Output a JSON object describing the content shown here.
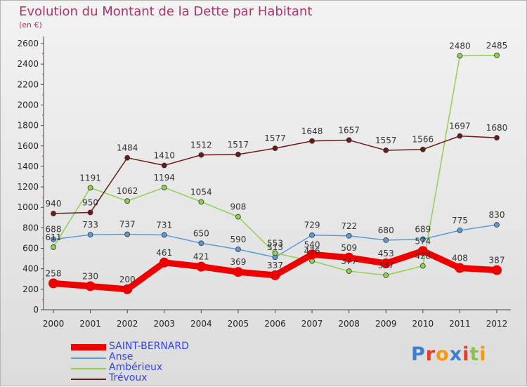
{
  "title": "Evolution du Montant de la Dette par Habitant",
  "unit": "(en €)",
  "logo": {
    "text": "Proxiti",
    "letter_colors": [
      "#3a7fd0",
      "#e0402a",
      "#f29a12",
      "#3a7fd0",
      "#e0402a",
      "#8bc34a",
      "#f29a12"
    ]
  },
  "chart_data": {
    "type": "line",
    "title": "Evolution du Montant de la Dette par Habitant",
    "subtitle": "(en €)",
    "xlabel": "",
    "ylabel": "",
    "x": [
      "2000",
      "2001",
      "2002",
      "2003",
      "2004",
      "2005",
      "2006",
      "2007",
      "2008",
      "2009",
      "2010",
      "2011",
      "2012"
    ],
    "yticks": [
      0,
      200,
      400,
      600,
      800,
      1000,
      1200,
      1400,
      1600,
      1800,
      2000,
      2200,
      2400,
      2600
    ],
    "ylim": [
      0,
      2600
    ],
    "grid": false,
    "legend_position": "bottom-left",
    "series": [
      {
        "name": "SAINT-BERNARD",
        "color": "#ee0000",
        "style": "thick",
        "values": [
          258,
          230,
          200,
          461,
          421,
          369,
          337,
          540,
          509,
          453,
          574,
          408,
          387
        ],
        "labels": [
          "258",
          "230",
          "200",
          "461",
          "421",
          "369",
          "337",
          "540",
          "509",
          "453",
          "574",
          "408",
          "387"
        ]
      },
      {
        "name": "Anse",
        "color": "#5b9bd5",
        "style": "thin",
        "values": [
          688,
          733,
          737,
          731,
          650,
          590,
          513,
          729,
          722,
          680,
          689,
          775,
          830
        ],
        "labels": [
          "688",
          "733",
          "737",
          "731",
          "650",
          "590",
          "513",
          "729",
          "722",
          "680",
          "689",
          "775",
          "830"
        ]
      },
      {
        "name": "Ambérieux",
        "color": "#8fd14f",
        "style": "thin",
        "values": [
          611,
          1191,
          1062,
          1194,
          1054,
          908,
          553,
          476,
          377,
          337,
          428,
          2480,
          2485
        ],
        "labels": [
          "611",
          "1191",
          "1062",
          "1194",
          "1054",
          "908",
          "553",
          "476",
          "377",
          "337",
          "428",
          "2480",
          "2485"
        ]
      },
      {
        "name": "Trévoux",
        "color": "#6b1a1a",
        "style": "thin",
        "values": [
          940,
          950,
          1484,
          1410,
          1512,
          1517,
          1577,
          1648,
          1657,
          1557,
          1566,
          1697,
          1680
        ],
        "labels": [
          "940",
          "950",
          "1484",
          "1410",
          "1512",
          "1517",
          "1577",
          "1648",
          "1657",
          "1557",
          "1566",
          "1697",
          "1680"
        ]
      }
    ]
  }
}
